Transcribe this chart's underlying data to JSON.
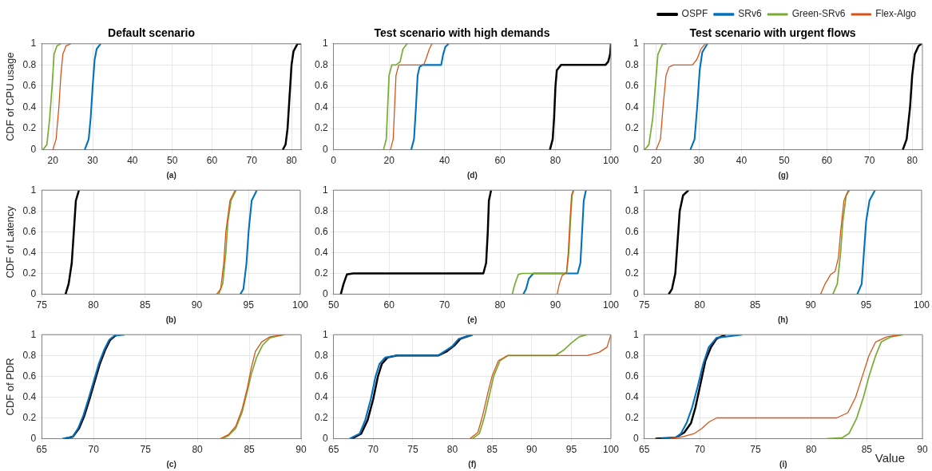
{
  "chart_data": [
    {
      "type": "line",
      "title": "Default scenario",
      "xlabel": "(a)",
      "ylabel": "CDF of CPU usage",
      "xlim": [
        17.2,
        82.4
      ],
      "xticks": [
        20,
        30,
        40,
        50,
        60,
        70,
        80
      ],
      "ylim": [
        0,
        1
      ],
      "yticks": [
        0,
        0.2,
        0.4,
        0.6,
        0.8,
        1
      ],
      "grid": true,
      "series": [
        {
          "color": "#000000",
          "x": [
            77.8,
            78.5,
            79,
            79.5,
            80,
            80.5,
            81.5,
            82.4
          ],
          "values": [
            0,
            0.05,
            0.2,
            0.5,
            0.8,
            0.93,
            1,
            1
          ]
        },
        {
          "color": "#0072bd",
          "x": [
            28,
            29,
            29.5,
            30,
            30.5,
            31,
            32
          ],
          "values": [
            0,
            0.1,
            0.3,
            0.6,
            0.85,
            0.95,
            1
          ]
        },
        {
          "color": "#77ac30",
          "x": [
            17.5,
            18.5,
            19.2,
            19.8,
            20.3,
            21,
            22
          ],
          "values": [
            0,
            0.05,
            0.3,
            0.6,
            0.9,
            0.98,
            1
          ]
        },
        {
          "color": "#d95319",
          "x": [
            20,
            20.8,
            21.5,
            22,
            22.5,
            23.3,
            24.5
          ],
          "values": [
            0,
            0.1,
            0.4,
            0.7,
            0.9,
            0.98,
            1
          ]
        }
      ]
    },
    {
      "type": "line",
      "title": "Test scenario with high demands",
      "xlabel": "(d)",
      "xlim": [
        0,
        100
      ],
      "xticks": [
        0,
        20,
        40,
        60,
        80,
        100
      ],
      "ylim": [
        0,
        1
      ],
      "yticks": [
        0,
        0.2,
        0.4,
        0.6,
        0.8,
        1
      ],
      "grid": true,
      "series": [
        {
          "color": "#000000",
          "x": [
            78,
            79,
            79.5,
            80,
            80.5,
            82,
            98,
            99,
            99.7,
            100
          ],
          "values": [
            0,
            0.1,
            0.3,
            0.6,
            0.75,
            0.8,
            0.8,
            0.83,
            0.9,
            1
          ]
        },
        {
          "color": "#0072bd",
          "x": [
            28,
            29,
            29.7,
            30.3,
            31,
            32,
            38.8,
            39.5,
            40.3,
            41.5
          ],
          "values": [
            0,
            0.1,
            0.4,
            0.7,
            0.78,
            0.8,
            0.8,
            0.9,
            0.97,
            1
          ]
        },
        {
          "color": "#77ac30",
          "x": [
            18,
            19,
            19.5,
            20,
            21,
            22.5,
            24,
            25,
            26.5
          ],
          "values": [
            0,
            0.1,
            0.4,
            0.7,
            0.8,
            0.8,
            0.83,
            0.95,
            1
          ]
        },
        {
          "color": "#d95319",
          "x": [
            20.5,
            21.5,
            22,
            22.5,
            23.5,
            32.5,
            33.5,
            34.5,
            35.5
          ],
          "values": [
            0,
            0.1,
            0.4,
            0.7,
            0.8,
            0.8,
            0.87,
            0.95,
            1
          ]
        }
      ]
    },
    {
      "type": "line",
      "title": "Test scenario with urgent flows",
      "xlabel": "(g)",
      "xlim": [
        17.2,
        82.4
      ],
      "xticks": [
        20,
        30,
        40,
        50,
        60,
        70,
        80
      ],
      "ylim": [
        0,
        1
      ],
      "yticks": [
        0,
        0.2,
        0.4,
        0.6,
        0.8,
        1
      ],
      "grid": true,
      "legend": "top right",
      "series": [
        {
          "name": "OSPF",
          "color": "#000000",
          "x": [
            77.8,
            78.7,
            79.5,
            80,
            80.6,
            81.5,
            82.2
          ],
          "values": [
            0,
            0.1,
            0.4,
            0.7,
            0.9,
            0.98,
            1
          ]
        },
        {
          "name": "SRv6",
          "color": "#0072bd",
          "x": [
            28,
            29,
            29.6,
            30.2,
            30.8,
            32
          ],
          "values": [
            0,
            0.1,
            0.4,
            0.75,
            0.92,
            1
          ]
        },
        {
          "name": "Green-SRv6",
          "color": "#77ac30",
          "x": [
            17.3,
            18.3,
            19.2,
            19.8,
            20.4,
            21.5,
            22.5
          ],
          "values": [
            0,
            0.05,
            0.3,
            0.6,
            0.9,
            1,
            1
          ]
        },
        {
          "name": "Flex-Algo",
          "color": "#d95319",
          "x": [
            20,
            21,
            21.6,
            22.3,
            23,
            24,
            28.5,
            29.5,
            30.5,
            31.5
          ],
          "values": [
            0,
            0.1,
            0.4,
            0.7,
            0.78,
            0.8,
            0.8,
            0.85,
            0.95,
            1
          ]
        }
      ]
    },
    {
      "type": "line",
      "xlabel": "(b)",
      "ylabel": "CDF of Latency",
      "xlim": [
        75,
        100
      ],
      "xticks": [
        75,
        80,
        85,
        90,
        95,
        100
      ],
      "ylim": [
        0,
        1
      ],
      "yticks": [
        0,
        0.2,
        0.4,
        0.6,
        0.8,
        1
      ],
      "grid": true,
      "series": [
        {
          "color": "#000000",
          "x": [
            77.3,
            77.6,
            77.9,
            78.1,
            78.3,
            78.6
          ],
          "values": [
            0,
            0.1,
            0.3,
            0.6,
            0.9,
            1
          ]
        },
        {
          "color": "#0072bd",
          "x": [
            94.2,
            94.5,
            94.8,
            95,
            95.3,
            95.8
          ],
          "values": [
            0,
            0.05,
            0.3,
            0.6,
            0.9,
            1
          ]
        },
        {
          "color": "#77ac30",
          "x": [
            92.1,
            92.5,
            92.8,
            93,
            93.3,
            93.8
          ],
          "values": [
            0,
            0.1,
            0.4,
            0.7,
            0.9,
            1
          ]
        },
        {
          "color": "#d95319",
          "x": [
            91.9,
            92.3,
            92.6,
            92.8,
            93.2,
            93.7
          ],
          "values": [
            0,
            0.05,
            0.3,
            0.6,
            0.9,
            1
          ]
        }
      ]
    },
    {
      "type": "line",
      "xlabel": "(e)",
      "xlim": [
        50,
        100
      ],
      "xticks": [
        50,
        60,
        70,
        80,
        90,
        100
      ],
      "ylim": [
        0,
        1
      ],
      "yticks": [
        0,
        0.2,
        0.4,
        0.6,
        0.8,
        1
      ],
      "grid": true,
      "series": [
        {
          "color": "#000000",
          "x": [
            51.3,
            51.8,
            52.4,
            53.5,
            77,
            77.5,
            77.8,
            78,
            78.4
          ],
          "values": [
            0,
            0.1,
            0.19,
            0.2,
            0.2,
            0.3,
            0.6,
            0.9,
            1
          ]
        },
        {
          "color": "#0072bd",
          "x": [
            84.2,
            84.7,
            85.2,
            86,
            94,
            94.5,
            94.8,
            95.1,
            95.5
          ],
          "values": [
            0,
            0.05,
            0.15,
            0.2,
            0.2,
            0.3,
            0.6,
            0.9,
            1
          ]
        },
        {
          "color": "#77ac30",
          "x": [
            82.2,
            82.7,
            83.3,
            84,
            92,
            92.4,
            92.7,
            93,
            93.3
          ],
          "values": [
            0,
            0.1,
            0.19,
            0.2,
            0.2,
            0.4,
            0.7,
            0.95,
            1
          ]
        },
        {
          "color": "#d95319",
          "x": [
            90.3,
            90.7,
            91.2,
            92,
            92.3,
            92.6,
            92.9,
            93.2
          ],
          "values": [
            0,
            0.1,
            0.18,
            0.21,
            0.4,
            0.7,
            0.95,
            1
          ]
        }
      ]
    },
    {
      "type": "line",
      "xlabel": "(h)",
      "xlim": [
        75,
        100
      ],
      "xticks": [
        75,
        80,
        85,
        90,
        95,
        100
      ],
      "ylim": [
        0,
        1
      ],
      "yticks": [
        0,
        0.2,
        0.4,
        0.6,
        0.8,
        1
      ],
      "grid": true,
      "series": [
        {
          "color": "#000000",
          "x": [
            77.2,
            77.5,
            77.8,
            78,
            78.2,
            78.5,
            79
          ],
          "values": [
            0,
            0.05,
            0.2,
            0.5,
            0.8,
            0.95,
            1
          ]
        },
        {
          "color": "#0072bd",
          "x": [
            94.2,
            94.6,
            94.8,
            95,
            95.3,
            95.8
          ],
          "values": [
            0,
            0.1,
            0.4,
            0.7,
            0.9,
            1
          ]
        },
        {
          "color": "#77ac30",
          "x": [
            92,
            92.4,
            92.7,
            92.9,
            93.2,
            93.5
          ],
          "values": [
            0,
            0.1,
            0.4,
            0.7,
            0.95,
            1
          ]
        },
        {
          "color": "#d95319",
          "x": [
            90.9,
            91.3,
            91.8,
            92.2,
            92.5,
            92.7,
            93,
            93.4
          ],
          "values": [
            0,
            0.1,
            0.19,
            0.22,
            0.35,
            0.6,
            0.9,
            1
          ]
        }
      ]
    },
    {
      "type": "line",
      "xlabel": "(c)",
      "ylabel": "CDF of PDR",
      "xlim": [
        65,
        90
      ],
      "xticks": [
        65,
        70,
        75,
        80,
        85,
        90
      ],
      "ylim": [
        0,
        1
      ],
      "yticks": [
        0,
        0.2,
        0.4,
        0.6,
        0.8,
        1
      ],
      "grid": true,
      "series": [
        {
          "color": "#000000",
          "x": [
            67.2,
            68,
            68.6,
            69.1,
            69.6,
            70.1,
            70.6,
            71.1,
            71.6,
            72.2
          ],
          "values": [
            0,
            0.02,
            0.1,
            0.22,
            0.38,
            0.55,
            0.72,
            0.85,
            0.95,
            1
          ]
        },
        {
          "color": "#0072bd",
          "x": [
            67,
            68,
            68.5,
            69,
            69.5,
            70,
            70.5,
            71,
            71.5,
            72,
            73
          ],
          "values": [
            0,
            0.02,
            0.1,
            0.22,
            0.38,
            0.55,
            0.72,
            0.85,
            0.95,
            0.99,
            1
          ]
        },
        {
          "color": "#77ac30",
          "x": [
            82.4,
            83,
            83.7,
            84.3,
            84.8,
            85.2,
            85.7,
            86.3,
            87,
            88.3
          ],
          "values": [
            0,
            0.03,
            0.1,
            0.25,
            0.45,
            0.62,
            0.78,
            0.9,
            0.97,
            1
          ]
        },
        {
          "color": "#d95319",
          "x": [
            82.2,
            83,
            83.7,
            84.3,
            84.8,
            85.2,
            85.6,
            86.2,
            87,
            88.5
          ],
          "values": [
            0,
            0.04,
            0.12,
            0.28,
            0.48,
            0.68,
            0.84,
            0.93,
            0.98,
            1
          ]
        }
      ]
    },
    {
      "type": "line",
      "xlabel": "(f)",
      "xlim": [
        65,
        100
      ],
      "xticks": [
        65,
        70,
        75,
        80,
        85,
        90,
        95,
        100
      ],
      "ylim": [
        0,
        1
      ],
      "yticks": [
        0,
        0.2,
        0.4,
        0.6,
        0.8,
        1
      ],
      "grid": true,
      "series": [
        {
          "color": "#000000",
          "x": [
            67.3,
            68.5,
            69.3,
            70,
            70.6,
            71.1,
            71.8,
            73,
            78.2,
            79.3,
            80.3,
            81,
            82.5
          ],
          "values": [
            0,
            0.05,
            0.18,
            0.38,
            0.6,
            0.72,
            0.78,
            0.8,
            0.8,
            0.84,
            0.9,
            0.96,
            1
          ]
        },
        {
          "color": "#0072bd",
          "x": [
            67,
            68.3,
            69,
            69.7,
            70.3,
            70.8,
            71.5,
            73,
            78.2,
            79,
            80,
            80.8,
            82.5
          ],
          "values": [
            0,
            0.05,
            0.18,
            0.38,
            0.6,
            0.72,
            0.78,
            0.8,
            0.8,
            0.84,
            0.89,
            0.96,
            1
          ]
        },
        {
          "color": "#77ac30",
          "x": [
            82.5,
            83.4,
            84,
            84.6,
            85.2,
            86,
            87,
            93,
            94,
            95,
            96,
            97
          ],
          "values": [
            0,
            0.05,
            0.2,
            0.4,
            0.6,
            0.75,
            0.8,
            0.8,
            0.85,
            0.92,
            0.98,
            1
          ]
        },
        {
          "color": "#d95319",
          "x": [
            82.2,
            83.2,
            83.8,
            84.5,
            85,
            85.8,
            87,
            97,
            98.5,
            99.5,
            100
          ],
          "values": [
            0,
            0.06,
            0.22,
            0.45,
            0.6,
            0.75,
            0.8,
            0.8,
            0.83,
            0.88,
            1
          ]
        }
      ]
    },
    {
      "type": "line",
      "xlabel": "(i)",
      "annotations": [
        "Value"
      ],
      "xlim": [
        65,
        90
      ],
      "xticks": [
        65,
        70,
        75,
        80,
        85,
        90
      ],
      "ylim": [
        0,
        1
      ],
      "yticks": [
        0,
        0.2,
        0.4,
        0.6,
        0.8,
        1
      ],
      "grid": true,
      "series": [
        {
          "color": "#000000",
          "x": [
            66,
            67.8,
            68.6,
            69.2,
            69.6,
            70,
            70.5,
            71,
            71.5,
            72.3
          ],
          "values": [
            0,
            0.01,
            0.06,
            0.15,
            0.3,
            0.5,
            0.75,
            0.88,
            0.96,
            1
          ]
        },
        {
          "color": "#0072bd",
          "x": [
            66.5,
            67.8,
            68.3,
            68.8,
            69.3,
            69.8,
            70.3,
            70.8,
            71.5,
            73.8
          ],
          "values": [
            0,
            0.01,
            0.05,
            0.15,
            0.3,
            0.5,
            0.72,
            0.88,
            0.97,
            1
          ]
        },
        {
          "color": "#77ac30",
          "x": [
            81.3,
            82.8,
            83.4,
            84.1,
            84.7,
            85.2,
            85.8,
            86.3,
            87.2,
            88.3
          ],
          "values": [
            0,
            0.01,
            0.05,
            0.2,
            0.4,
            0.6,
            0.8,
            0.93,
            0.98,
            1
          ]
        },
        {
          "color": "#d95319",
          "x": [
            67.2,
            68.5,
            69.5,
            70.2,
            70.8,
            71.5,
            82.3,
            83.3,
            84,
            84.6,
            85.2,
            85.8,
            86.8,
            88.2
          ],
          "values": [
            0,
            0.02,
            0.05,
            0.1,
            0.16,
            0.2,
            0.2,
            0.25,
            0.4,
            0.6,
            0.8,
            0.93,
            0.98,
            1
          ]
        }
      ]
    }
  ]
}
